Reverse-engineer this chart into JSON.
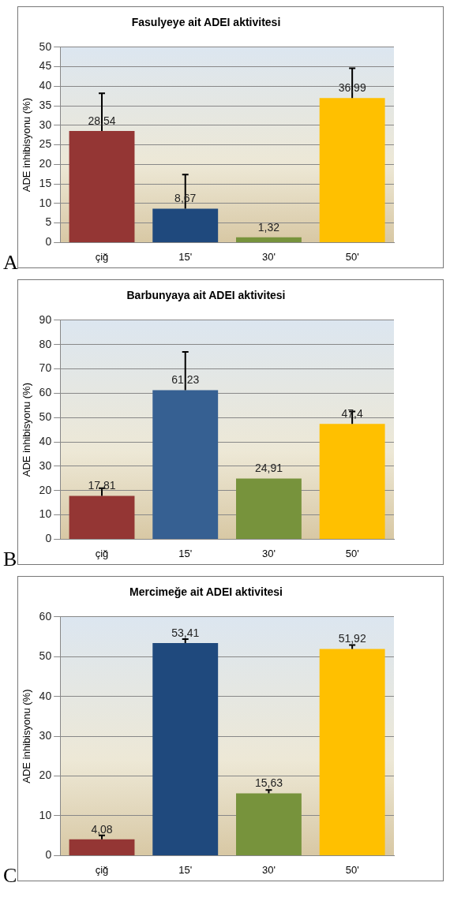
{
  "chart_data": [
    {
      "type": "bar",
      "title": "Fasulyeye ait ADEI aktivitesi",
      "ylabel": "ADE inhibisyonu (%)",
      "categories": [
        "çiğ",
        "15'",
        "30'",
        "50'"
      ],
      "values": [
        28.54,
        8.67,
        1.32,
        36.99
      ],
      "value_labels": [
        "28,54",
        "8,67",
        "1,32",
        "36,99"
      ],
      "errors": [
        [
          28.54,
          38.2
        ],
        [
          8.67,
          17.4
        ],
        null,
        [
          36.99,
          44.6
        ]
      ],
      "colors": [
        "#943634",
        "#1f497d",
        "#77933c",
        "#ffc000"
      ],
      "ylim": [
        0,
        50
      ],
      "yticks": [
        0,
        5,
        10,
        15,
        20,
        25,
        30,
        35,
        40,
        45,
        50
      ],
      "grid": "y",
      "legend": false,
      "annotations": [
        "A"
      ]
    },
    {
      "type": "bar",
      "title": "Barbunyaya ait ADEI aktivitesi",
      "ylabel": "ADE inhibisyonu (%)",
      "categories": [
        "çiğ",
        "15'",
        "30'",
        "50'"
      ],
      "values": [
        17.81,
        61.23,
        24.91,
        47.4
      ],
      "value_labels": [
        "17,81",
        "61,23",
        "24,91",
        "47,4"
      ],
      "errors": [
        [
          17.81,
          21
        ],
        [
          61.23,
          77
        ],
        null,
        [
          47.4,
          52.5
        ]
      ],
      "colors": [
        "#943634",
        "#366092",
        "#77933c",
        "#ffc000"
      ],
      "ylim": [
        0,
        90
      ],
      "yticks": [
        0,
        10,
        20,
        30,
        40,
        50,
        60,
        70,
        80,
        90
      ],
      "grid": "y",
      "legend": false,
      "annotations": [
        "B"
      ]
    },
    {
      "type": "bar",
      "title": "Mercimeğe ait ADEI aktivitesi",
      "ylabel": "ADE inhibisyonu (%)",
      "categories": [
        "çiğ",
        "15'",
        "30'",
        "50'"
      ],
      "values": [
        4.08,
        53.41,
        15.63,
        51.92
      ],
      "value_labels": [
        "4,08",
        "53,41",
        "15,63",
        "51,92"
      ],
      "errors": [
        [
          4.08,
          5.1
        ],
        [
          53.41,
          54.4
        ],
        [
          15.63,
          16.5
        ],
        [
          51.92,
          52.9
        ]
      ],
      "colors": [
        "#943634",
        "#1f497d",
        "#77933c",
        "#ffc000"
      ],
      "ylim": [
        0,
        60
      ],
      "yticks": [
        0,
        10,
        20,
        30,
        40,
        50,
        60
      ],
      "grid": "y",
      "legend": false,
      "annotations": [
        "C"
      ]
    }
  ]
}
